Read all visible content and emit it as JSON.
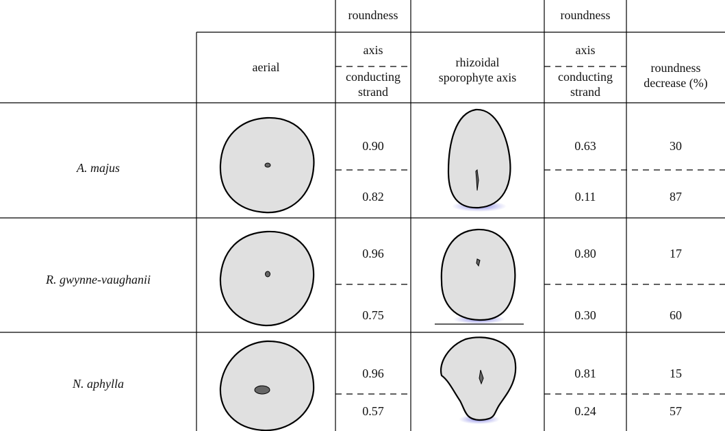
{
  "header": {
    "roundness_labels": [
      "roundness",
      "roundness"
    ],
    "columns": [
      "aerial",
      "axis",
      "conducting strand",
      "rhizoidal sporophyte axis",
      "axis",
      "conducting strand",
      "roundness decrease (%)"
    ]
  },
  "rows": [
    {
      "species": "A. majus",
      "aerial": [
        "0.90",
        "0.82"
      ],
      "rhizoidal": [
        "0.63",
        "0.11"
      ],
      "decrease": [
        "30",
        "87"
      ]
    },
    {
      "species": "R. gwynne-vaughanii",
      "aerial": [
        "0.96",
        "0.75"
      ],
      "rhizoidal": [
        "0.80",
        "0.30"
      ],
      "decrease": [
        "17",
        "60"
      ]
    },
    {
      "species": "N. aphylla",
      "aerial": [
        "0.96",
        "0.57"
      ],
      "rhizoidal": [
        "0.81",
        "0.24"
      ],
      "decrease": [
        "15",
        "57"
      ]
    }
  ]
}
